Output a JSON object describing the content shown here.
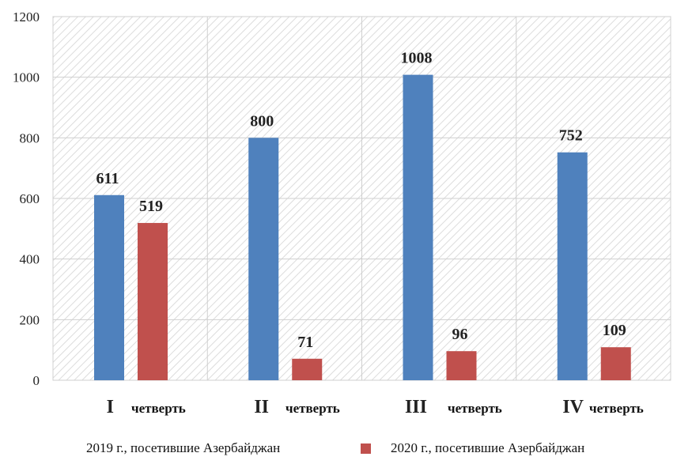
{
  "chart_data": {
    "type": "bar",
    "categories": [
      {
        "numeral": "I",
        "word": "четверть"
      },
      {
        "numeral": "II",
        "word": "четверть"
      },
      {
        "numeral": "III",
        "word": "четверть"
      },
      {
        "numeral": "IV",
        "word": "четверть"
      }
    ],
    "series": [
      {
        "name": "2019 г., посетившие Азербайджан",
        "color": "#4f81bd",
        "values": [
          611,
          800,
          1008,
          752
        ],
        "labels": [
          "611",
          "800",
          "1008",
          "752"
        ]
      },
      {
        "name": "2020 г., посетившие Азербайджан",
        "color": "#c0504d",
        "values": [
          519,
          71,
          96,
          109
        ],
        "labels": [
          "519",
          "71",
          "96",
          "109"
        ]
      }
    ],
    "ylim": [
      0,
      1200
    ],
    "yticks": [
      "0",
      "200",
      "400",
      "600",
      "800",
      "1000",
      "1200"
    ],
    "grid": true,
    "legend_position": "bottom"
  }
}
